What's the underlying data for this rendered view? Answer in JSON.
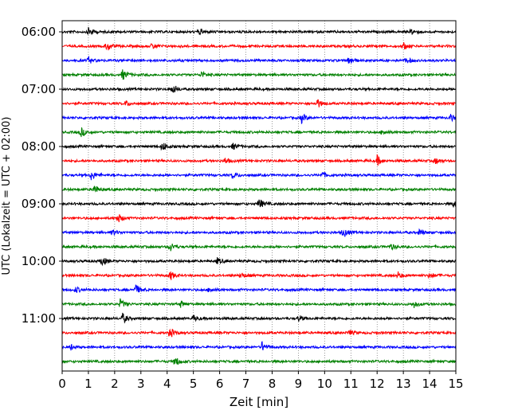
{
  "chart_data": {
    "type": "line",
    "title": "",
    "xlabel": "Zeit  [min]",
    "ylabel": "UTC (Lokalzeit = UTC + 02:00)",
    "xlim": [
      0,
      15
    ],
    "x_ticks": [
      "0",
      "1",
      "2",
      "3",
      "4",
      "5",
      "6",
      "7",
      "8",
      "9",
      "10",
      "11",
      "12",
      "13",
      "14",
      "15"
    ],
    "y_ticks": [
      "06:00",
      "07:00",
      "08:00",
      "09:00",
      "10:00",
      "11:00"
    ],
    "grid": "vertical dotted lines at each minute",
    "legend": "none",
    "trace_colors": [
      "#000000",
      "#ff0000",
      "#0000ff",
      "#008000"
    ],
    "traces": [
      {
        "start": "06:00",
        "color": "#000000",
        "events_min": [
          1.0,
          5.2,
          13.3
        ]
      },
      {
        "start": "06:15",
        "color": "#ff0000",
        "events_min": [
          1.7,
          3.4,
          13.0
        ]
      },
      {
        "start": "06:30",
        "color": "#0000ff",
        "events_min": [
          10.9,
          1.0,
          13.1
        ]
      },
      {
        "start": "06:45",
        "color": "#008000",
        "events_min": [
          2.3,
          5.3
        ]
      },
      {
        "start": "07:00",
        "color": "#000000",
        "events_min": [
          4.2
        ]
      },
      {
        "start": "07:15",
        "color": "#ff0000",
        "events_min": [
          9.7,
          2.4
        ]
      },
      {
        "start": "07:30",
        "color": "#0000ff",
        "events_min": [
          9.1,
          14.8
        ]
      },
      {
        "start": "07:45",
        "color": "#008000",
        "events_min": [
          0.7,
          12.2
        ]
      },
      {
        "start": "08:00",
        "color": "#000000",
        "events_min": [
          3.8,
          6.5
        ]
      },
      {
        "start": "08:15",
        "color": "#ff0000",
        "events_min": [
          12.0,
          14.2,
          6.2
        ]
      },
      {
        "start": "08:30",
        "color": "#0000ff",
        "events_min": [
          1.1,
          6.5,
          9.9
        ]
      },
      {
        "start": "08:45",
        "color": "#008000",
        "events_min": [
          1.2
        ]
      },
      {
        "start": "09:00",
        "color": "#000000",
        "events_min": [
          7.5,
          14.9
        ]
      },
      {
        "start": "09:15",
        "color": "#ff0000",
        "events_min": [
          2.1
        ]
      },
      {
        "start": "09:30",
        "color": "#0000ff",
        "events_min": [
          10.7,
          1.9,
          13.6
        ]
      },
      {
        "start": "09:45",
        "color": "#008000",
        "events_min": [
          4.1,
          12.5
        ]
      },
      {
        "start": "10:00",
        "color": "#000000",
        "events_min": [
          1.5,
          5.9
        ]
      },
      {
        "start": "10:15",
        "color": "#ff0000",
        "events_min": [
          4.1,
          6.8,
          14.0,
          12.8
        ]
      },
      {
        "start": "10:30",
        "color": "#0000ff",
        "events_min": [
          2.8,
          5.6,
          0.5
        ]
      },
      {
        "start": "10:45",
        "color": "#008000",
        "events_min": [
          2.2,
          4.5,
          13.4
        ]
      },
      {
        "start": "11:00",
        "color": "#000000",
        "events_min": [
          2.3,
          5.0,
          9.0
        ]
      },
      {
        "start": "11:15",
        "color": "#ff0000",
        "events_min": [
          4.1,
          10.9
        ]
      },
      {
        "start": "11:30",
        "color": "#0000ff",
        "events_min": [
          7.6,
          0.3
        ]
      },
      {
        "start": "11:45",
        "color": "#008000",
        "events_min": [
          4.3
        ]
      }
    ]
  }
}
